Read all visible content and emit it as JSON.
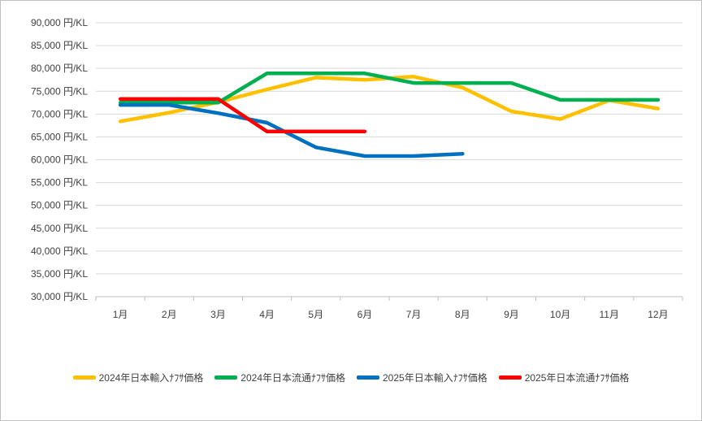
{
  "chart_data": {
    "type": "line",
    "title": "",
    "xlabel": "",
    "ylabel": "",
    "categories": [
      "1月",
      "2月",
      "3月",
      "4月",
      "5月",
      "6月",
      "7月",
      "8月",
      "9月",
      "10月",
      "11月",
      "12月"
    ],
    "ylim": [
      30000,
      90000
    ],
    "yticks": [
      90000,
      85000,
      80000,
      75000,
      70000,
      65000,
      60000,
      55000,
      50000,
      45000,
      40000,
      35000,
      30000
    ],
    "ytick_labels": [
      "90,000 円/KL",
      "85,000 円/KL",
      "80,000 円/KL",
      "75,000 円/KL",
      "70,000 円/KL",
      "65,000 円/KL",
      "60,000 円/KL",
      "55,000 円/KL",
      "50,000 円/KL",
      "45,000 円/KL",
      "40,000 円/KL",
      "35,000 円/KL",
      "30,000 円/KL"
    ],
    "grid": true,
    "legend_position": "bottom",
    "series": [
      {
        "name": "2024年日本輸入ﾅﾌｻ価格",
        "color": "#FFC000",
        "values": [
          68400,
          70300,
          72600,
          75400,
          78000,
          77500,
          78200,
          75800,
          70600,
          68900,
          73000,
          71200
        ]
      },
      {
        "name": "2024年日本流通ﾅﾌｻ価格",
        "color": "#00B050",
        "values": [
          72500,
          72500,
          72500,
          78900,
          78900,
          78900,
          76800,
          76800,
          76800,
          73100,
          73100,
          73100
        ]
      },
      {
        "name": "2025年日本輸入ﾅﾌｻ価格",
        "color": "#0070C0",
        "values": [
          72000,
          72000,
          70200,
          68100,
          62700,
          60800,
          60800,
          61300,
          null,
          null,
          null,
          null
        ]
      },
      {
        "name": "2025年日本流通ﾅﾌｻ価格",
        "color": "#FF0000",
        "values": [
          73300,
          73300,
          73300,
          66200,
          66200,
          66200,
          null,
          null,
          null,
          null,
          null,
          null
        ]
      }
    ]
  }
}
